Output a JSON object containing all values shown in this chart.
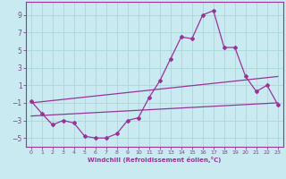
{
  "xlabel": "Windchill (Refroidissement éolien,°C)",
  "bg_color": "#c8eaf0",
  "grid_color": "#aad8d8",
  "line_color": "#993399",
  "xlim": [
    -0.5,
    23.5
  ],
  "ylim": [
    -6,
    10.5
  ],
  "xticks": [
    0,
    1,
    2,
    3,
    4,
    5,
    6,
    7,
    8,
    9,
    10,
    11,
    12,
    13,
    14,
    15,
    16,
    17,
    18,
    19,
    20,
    21,
    22,
    23
  ],
  "yticks": [
    -5,
    -3,
    -1,
    1,
    3,
    5,
    7,
    9
  ],
  "main_x": [
    0,
    1,
    2,
    3,
    4,
    5,
    6,
    7,
    8,
    9,
    10,
    11,
    12,
    13,
    14,
    15,
    16,
    17,
    18,
    19,
    20,
    21,
    22,
    23
  ],
  "main_y": [
    -0.8,
    -2.2,
    -3.5,
    -3.0,
    -3.3,
    -4.8,
    -5.0,
    -5.0,
    -4.5,
    -3.0,
    -2.7,
    -0.4,
    1.5,
    4.0,
    6.5,
    6.3,
    9.0,
    9.5,
    5.3,
    5.3,
    2.0,
    0.3,
    1.0,
    -1.2
  ],
  "line2_x": [
    0,
    23
  ],
  "line2_y": [
    -1.0,
    2.0
  ],
  "line3_x": [
    0,
    23
  ],
  "line3_y": [
    -2.5,
    -1.0
  ]
}
